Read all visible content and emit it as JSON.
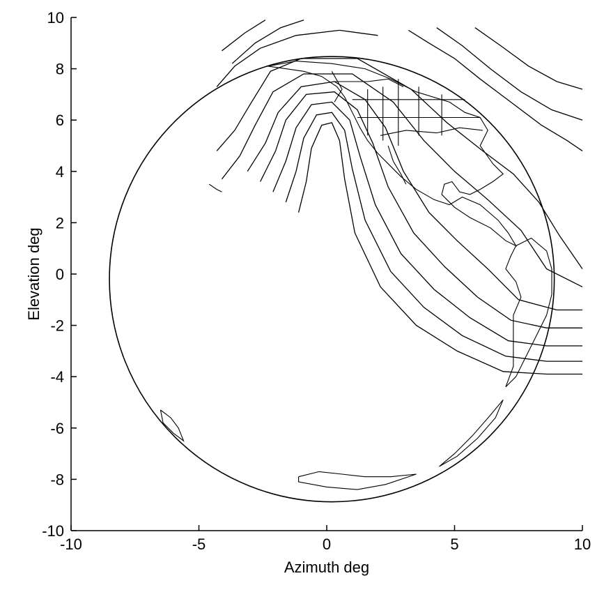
{
  "chart_data": {
    "type": "contour",
    "xlabel": "Azimuth deg",
    "ylabel": "Elevation deg",
    "xlim": [
      -10,
      10
    ],
    "ylim": [
      -10,
      10
    ],
    "xticks": [
      -10,
      -5,
      0,
      5,
      10
    ],
    "yticks": [
      -10,
      -8,
      -6,
      -4,
      -2,
      0,
      2,
      4,
      6,
      8,
      10
    ],
    "grid": false,
    "earth_disk": {
      "center": [
        0.2,
        -0.2
      ],
      "radius": 8.7
    },
    "contours": [
      {
        "points": [
          [
            -4.3,
            4.8
          ],
          [
            -3.6,
            5.6
          ],
          [
            -3.0,
            6.6
          ],
          [
            -2.2,
            7.9
          ],
          [
            -1.0,
            8.4
          ],
          [
            1.2,
            8.4
          ],
          [
            3.3,
            7.2
          ],
          [
            4.7,
            5.9
          ],
          [
            6.1,
            4.8
          ],
          [
            7.3,
            3.9
          ],
          [
            8.3,
            2.8
          ],
          [
            9.1,
            1.5
          ],
          [
            10.0,
            0.2
          ]
        ]
      },
      {
        "points": [
          [
            -4.1,
            3.7
          ],
          [
            -3.4,
            4.6
          ],
          [
            -2.8,
            5.8
          ],
          [
            -2.1,
            7.1
          ],
          [
            -0.9,
            7.8
          ],
          [
            1.0,
            7.8
          ],
          [
            2.6,
            6.7
          ],
          [
            3.8,
            5.2
          ],
          [
            5.0,
            4.0
          ],
          [
            6.3,
            2.9
          ],
          [
            7.6,
            1.7
          ],
          [
            8.6,
            0.2
          ],
          [
            10.0,
            -0.5
          ]
        ]
      },
      {
        "points": [
          [
            -3.1,
            4.0
          ],
          [
            -2.4,
            5.1
          ],
          [
            -1.9,
            6.3
          ],
          [
            -1.0,
            7.3
          ],
          [
            0.3,
            7.5
          ],
          [
            1.5,
            6.8
          ],
          [
            2.3,
            5.7
          ],
          [
            3.0,
            4.0
          ],
          [
            4.0,
            2.4
          ],
          [
            5.1,
            1.3
          ],
          [
            6.3,
            0.2
          ],
          [
            7.5,
            -1.0
          ],
          [
            9.0,
            -1.4
          ],
          [
            10.0,
            -1.4
          ]
        ]
      },
      {
        "points": [
          [
            -2.6,
            3.6
          ],
          [
            -2.0,
            4.8
          ],
          [
            -1.6,
            6.0
          ],
          [
            -0.8,
            7.0
          ],
          [
            0.3,
            7.1
          ],
          [
            1.2,
            6.4
          ],
          [
            1.8,
            5.1
          ],
          [
            2.4,
            3.4
          ],
          [
            3.4,
            1.6
          ],
          [
            4.6,
            0.3
          ],
          [
            5.9,
            -0.9
          ],
          [
            7.2,
            -1.8
          ],
          [
            8.6,
            -2.1
          ],
          [
            10.0,
            -2.1
          ]
        ]
      },
      {
        "points": [
          [
            -2.1,
            3.2
          ],
          [
            -1.6,
            4.4
          ],
          [
            -1.2,
            5.7
          ],
          [
            -0.6,
            6.6
          ],
          [
            0.2,
            6.7
          ],
          [
            0.9,
            6.0
          ],
          [
            1.3,
            4.6
          ],
          [
            1.9,
            2.7
          ],
          [
            2.9,
            0.8
          ],
          [
            4.2,
            -0.6
          ],
          [
            5.6,
            -1.7
          ],
          [
            7.1,
            -2.6
          ],
          [
            8.6,
            -2.8
          ],
          [
            10.0,
            -2.8
          ]
        ]
      },
      {
        "points": [
          [
            -1.6,
            2.8
          ],
          [
            -1.2,
            4.0
          ],
          [
            -0.9,
            5.3
          ],
          [
            -0.4,
            6.2
          ],
          [
            0.2,
            6.3
          ],
          [
            0.7,
            5.6
          ],
          [
            1.0,
            4.1
          ],
          [
            1.5,
            2.1
          ],
          [
            2.5,
            0.1
          ],
          [
            3.8,
            -1.3
          ],
          [
            5.3,
            -2.4
          ],
          [
            7.0,
            -3.2
          ],
          [
            8.6,
            -3.4
          ],
          [
            10.0,
            -3.4
          ]
        ]
      },
      {
        "points": [
          [
            -1.1,
            2.4
          ],
          [
            -0.8,
            3.6
          ],
          [
            -0.6,
            4.9
          ],
          [
            -0.2,
            5.8
          ],
          [
            0.2,
            5.9
          ],
          [
            0.5,
            5.2
          ],
          [
            0.7,
            3.7
          ],
          [
            1.1,
            1.6
          ],
          [
            2.1,
            -0.5
          ],
          [
            3.5,
            -2.0
          ],
          [
            5.1,
            -3.0
          ],
          [
            6.9,
            -3.8
          ],
          [
            8.6,
            -3.9
          ],
          [
            10.0,
            -3.9
          ]
        ]
      },
      {
        "points": [
          [
            3.2,
            9.5
          ],
          [
            4.0,
            9.0
          ],
          [
            5.0,
            8.4
          ],
          [
            6.0,
            7.6
          ],
          [
            7.2,
            6.7
          ],
          [
            8.4,
            5.8
          ],
          [
            9.4,
            5.2
          ],
          [
            10.0,
            4.8
          ]
        ]
      },
      {
        "points": [
          [
            4.3,
            9.6
          ],
          [
            5.3,
            8.9
          ],
          [
            6.4,
            8.0
          ],
          [
            7.6,
            7.1
          ],
          [
            8.8,
            6.4
          ],
          [
            10.0,
            6.0
          ]
        ]
      },
      {
        "points": [
          [
            5.8,
            9.6
          ],
          [
            6.8,
            8.9
          ],
          [
            7.9,
            8.1
          ],
          [
            9.0,
            7.5
          ],
          [
            10.0,
            7.2
          ]
        ]
      },
      {
        "points": [
          [
            -4.1,
            8.7
          ],
          [
            -3.2,
            9.4
          ],
          [
            -2.4,
            9.9
          ]
        ]
      },
      {
        "points": [
          [
            -3.7,
            8.2
          ],
          [
            -2.8,
            9.0
          ],
          [
            -1.8,
            9.6
          ],
          [
            -0.9,
            9.9
          ]
        ]
      },
      {
        "points": [
          [
            -4.3,
            7.3
          ],
          [
            -3.6,
            8.1
          ],
          [
            -2.6,
            8.8
          ],
          [
            -1.2,
            9.3
          ],
          [
            0.5,
            9.5
          ],
          [
            2.0,
            9.3
          ]
        ]
      }
    ],
    "coastlines": [
      {
        "name": "north-america",
        "points": [
          [
            -2.3,
            8.1
          ],
          [
            -1.2,
            8.3
          ],
          [
            0.2,
            8.2
          ],
          [
            1.5,
            8.0
          ],
          [
            2.5,
            7.6
          ],
          [
            3.5,
            7.1
          ],
          [
            4.8,
            6.7
          ],
          [
            5.4,
            6.3
          ],
          [
            6.0,
            6.1
          ],
          [
            6.3,
            5.6
          ],
          [
            6.0,
            5.0
          ],
          [
            6.5,
            4.3
          ],
          [
            6.9,
            3.9
          ],
          [
            6.5,
            3.6
          ],
          [
            6.0,
            3.3
          ],
          [
            5.6,
            3.1
          ],
          [
            5.2,
            3.2
          ],
          [
            4.9,
            3.6
          ],
          [
            4.6,
            3.5
          ],
          [
            4.5,
            3.1
          ],
          [
            5.0,
            2.6
          ],
          [
            5.6,
            2.2
          ],
          [
            6.4,
            1.8
          ],
          [
            7.0,
            1.3
          ],
          [
            7.4,
            1.1
          ],
          [
            7.1,
            1.6
          ],
          [
            6.7,
            2.1
          ],
          [
            6.0,
            2.7
          ],
          [
            5.3,
            3.0
          ],
          [
            4.8,
            2.7
          ],
          [
            4.2,
            2.9
          ],
          [
            3.5,
            3.3
          ],
          [
            2.9,
            3.8
          ],
          [
            2.4,
            4.3
          ],
          [
            2.0,
            4.7
          ],
          [
            1.6,
            5.2
          ],
          [
            1.3,
            5.7
          ],
          [
            1.0,
            6.3
          ],
          [
            0.7,
            6.9
          ],
          [
            0.4,
            7.3
          ],
          [
            -0.2,
            7.7
          ],
          [
            -0.9,
            7.9
          ],
          [
            -1.6,
            8.0
          ],
          [
            -2.3,
            8.1
          ]
        ]
      },
      {
        "name": "baja",
        "points": [
          [
            2.4,
            5.0
          ],
          [
            2.6,
            4.4
          ],
          [
            2.9,
            3.9
          ],
          [
            3.1,
            3.5
          ]
        ]
      },
      {
        "name": "south-america",
        "points": [
          [
            7.4,
            1.1
          ],
          [
            8.0,
            1.4
          ],
          [
            8.6,
            0.9
          ],
          [
            8.8,
            0.2
          ],
          [
            8.8,
            -0.8
          ],
          [
            8.6,
            -1.6
          ],
          [
            8.1,
            -2.6
          ],
          [
            7.7,
            -3.4
          ],
          [
            7.4,
            -4.0
          ],
          [
            7.0,
            -4.4
          ],
          [
            7.3,
            -3.6
          ],
          [
            7.3,
            -2.6
          ],
          [
            7.3,
            -1.6
          ],
          [
            7.6,
            -0.9
          ],
          [
            7.4,
            -0.3
          ],
          [
            7.0,
            0.2
          ],
          [
            7.2,
            0.7
          ],
          [
            7.4,
            1.1
          ]
        ]
      },
      {
        "name": "antarctica",
        "points": [
          [
            -1.1,
            -7.9
          ],
          [
            -0.3,
            -7.7
          ],
          [
            0.6,
            -7.8
          ],
          [
            1.5,
            -7.9
          ],
          [
            2.5,
            -7.9
          ],
          [
            3.5,
            -7.8
          ],
          [
            2.3,
            -8.2
          ],
          [
            1.2,
            -8.4
          ],
          [
            0.0,
            -8.3
          ],
          [
            -1.1,
            -8.1
          ],
          [
            -1.1,
            -7.9
          ]
        ]
      },
      {
        "name": "new-zealand",
        "points": [
          [
            -6.5,
            -5.3
          ],
          [
            -6.1,
            -5.6
          ],
          [
            -5.8,
            -6.0
          ],
          [
            -5.6,
            -6.5
          ],
          [
            -6.0,
            -6.2
          ],
          [
            -6.4,
            -5.8
          ],
          [
            -6.5,
            -5.3
          ]
        ]
      },
      {
        "name": "southern-cone",
        "points": [
          [
            6.9,
            -4.9
          ],
          [
            6.4,
            -5.5
          ],
          [
            5.7,
            -6.3
          ],
          [
            5.0,
            -7.0
          ],
          [
            4.4,
            -7.5
          ],
          [
            5.1,
            -7.1
          ],
          [
            5.9,
            -6.4
          ],
          [
            6.6,
            -5.6
          ],
          [
            6.9,
            -4.9
          ]
        ]
      },
      {
        "name": "hawaii",
        "points": [
          [
            -4.6,
            3.5
          ],
          [
            -4.3,
            3.3
          ],
          [
            -4.1,
            3.2
          ]
        ]
      }
    ],
    "borders": [
      {
        "points": [
          [
            0.3,
            7.5
          ],
          [
            1.6,
            7.5
          ],
          [
            2.4,
            7.6
          ],
          [
            3.0,
            7.3
          ]
        ]
      },
      {
        "points": [
          [
            2.1,
            5.4
          ],
          [
            3.1,
            5.6
          ],
          [
            4.3,
            5.5
          ],
          [
            5.2,
            5.7
          ],
          [
            6.1,
            5.6
          ]
        ]
      },
      {
        "points": [
          [
            1.0,
            6.8
          ],
          [
            5.4,
            6.8
          ]
        ]
      },
      {
        "points": [
          [
            1.2,
            6.1
          ],
          [
            6.0,
            6.1
          ]
        ]
      },
      {
        "points": [
          [
            1.6,
            7.2
          ],
          [
            1.6,
            5.4
          ]
        ]
      },
      {
        "points": [
          [
            2.8,
            7.6
          ],
          [
            2.8,
            5.0
          ]
        ]
      },
      {
        "points": [
          [
            3.6,
            7.3
          ],
          [
            3.6,
            5.4
          ]
        ]
      },
      {
        "points": [
          [
            4.5,
            7.0
          ],
          [
            4.5,
            5.4
          ]
        ]
      },
      {
        "points": [
          [
            2.2,
            7.3
          ],
          [
            2.2,
            5.2
          ]
        ]
      },
      {
        "points": [
          [
            0.2,
            7.9
          ],
          [
            0.6,
            7.2
          ],
          [
            0.3,
            6.7
          ]
        ]
      }
    ]
  }
}
